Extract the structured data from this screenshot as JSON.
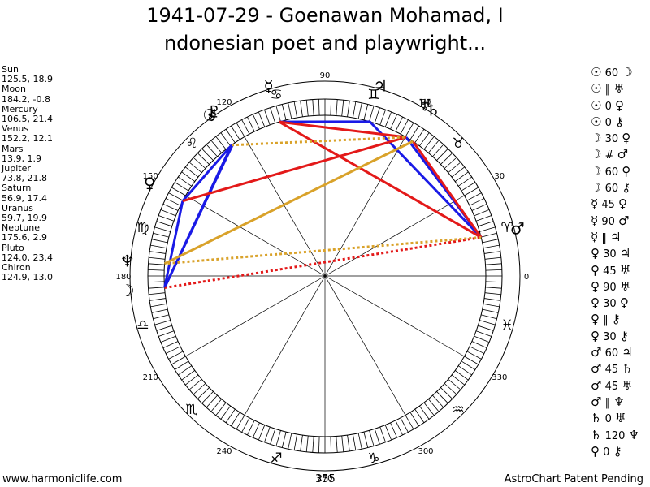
{
  "title": {
    "line1": "1941-07-29 - Goenawan Mohamad, I",
    "line2": "ndonesian poet and playwright..."
  },
  "positions": [
    {
      "name": "Sun",
      "value": "125.5, 18.9"
    },
    {
      "name": "Moon",
      "value": "184.2, -0.8"
    },
    {
      "name": "Mercury",
      "value": "106.5, 21.4"
    },
    {
      "name": "Venus",
      "value": "152.2, 12.1"
    },
    {
      "name": "Mars",
      "value": "13.9, 1.9"
    },
    {
      "name": "Jupiter",
      "value": "73.8, 21.8"
    },
    {
      "name": "Saturn",
      "value": "56.9, 17.4"
    },
    {
      "name": "Uranus",
      "value": "59.7, 19.9"
    },
    {
      "name": "Neptune",
      "value": "175.6, 2.9"
    },
    {
      "name": "Pluto",
      "value": "124.0, 23.4"
    },
    {
      "name": "Chiron",
      "value": "124.9, 13.0"
    }
  ],
  "aspects": [
    {
      "p1": "☉",
      "asp": "60",
      "p2": "☽"
    },
    {
      "p1": "☉",
      "asp": "‖",
      "p2": "♅"
    },
    {
      "p1": "☉",
      "asp": "0",
      "p2": "♀"
    },
    {
      "p1": "☉",
      "asp": "0",
      "p2": "⚷"
    },
    {
      "p1": "☽",
      "asp": "30",
      "p2": "♀"
    },
    {
      "p1": "☽",
      "asp": "#",
      "p2": "♂"
    },
    {
      "p1": "☽",
      "asp": "60",
      "p2": "♀"
    },
    {
      "p1": "☽",
      "asp": "60",
      "p2": "⚷"
    },
    {
      "p1": "☿",
      "asp": "45",
      "p2": "♀"
    },
    {
      "p1": "☿",
      "asp": "90",
      "p2": "♂"
    },
    {
      "p1": "☿",
      "asp": "‖",
      "p2": "♃"
    },
    {
      "p1": "♀",
      "asp": "30",
      "p2": "♃"
    },
    {
      "p1": "♀",
      "asp": "45",
      "p2": "♅"
    },
    {
      "p1": "♀",
      "asp": "90",
      "p2": "♅"
    },
    {
      "p1": "♀",
      "asp": "30",
      "p2": "♀"
    },
    {
      "p1": "♀",
      "asp": "‖",
      "p2": "⚷"
    },
    {
      "p1": "♀",
      "asp": "30",
      "p2": "⚷"
    },
    {
      "p1": "♂",
      "asp": "60",
      "p2": "♃"
    },
    {
      "p1": "♂",
      "asp": "45",
      "p2": "♄"
    },
    {
      "p1": "♂",
      "asp": "45",
      "p2": "♅"
    },
    {
      "p1": "♂",
      "asp": "‖",
      "p2": "♆"
    },
    {
      "p1": "♄",
      "asp": "0",
      "p2": "♅"
    },
    {
      "p1": "♄",
      "asp": "120",
      "p2": "♆"
    },
    {
      "p1": "♀",
      "asp": "0",
      "p2": "⚷"
    }
  ],
  "footer": {
    "site": "www.harmoniclife.com",
    "center_value": "355",
    "patent": "AstroChart Patent Pending"
  },
  "colors": {
    "red": "#e31919",
    "blue": "#1a1ae6",
    "gold": "#d9a22a",
    "ink": "#000000"
  },
  "chart_data": {
    "type": "radial",
    "degree_labels": [
      "0",
      "30",
      "60",
      "90",
      "120",
      "150",
      "180",
      "210",
      "240",
      "270",
      "300",
      "330"
    ],
    "signs": [
      "♈",
      "♉",
      "♊",
      "♋",
      "♌",
      "♍",
      "♎",
      "♏",
      "♐",
      "♑",
      "♒",
      "♓"
    ],
    "planets": [
      {
        "glyph": "☉",
        "lon": 125.5
      },
      {
        "glyph": "☽",
        "lon": 184.2
      },
      {
        "glyph": "☿",
        "lon": 106.5
      },
      {
        "glyph": "♀",
        "lon": 152.2
      },
      {
        "glyph": "♂",
        "lon": 13.9
      },
      {
        "glyph": "♃",
        "lon": 73.8
      },
      {
        "glyph": "♄",
        "lon": 56.9
      },
      {
        "glyph": "♅",
        "lon": 59.7
      },
      {
        "glyph": "♆",
        "lon": 175.6
      },
      {
        "glyph": "♇",
        "lon": 124.0
      },
      {
        "glyph": "⚷",
        "lon": 124.9
      }
    ],
    "aspect_lines": [
      {
        "a": 0,
        "b": 1,
        "color": "blue",
        "style": "solid"
      },
      {
        "a": 0,
        "b": 3,
        "color": "blue",
        "style": "solid"
      },
      {
        "a": 0,
        "b": 10,
        "color": "blue",
        "style": "solid"
      },
      {
        "a": 1,
        "b": 3,
        "color": "blue",
        "style": "solid"
      },
      {
        "a": 1,
        "b": 10,
        "color": "blue",
        "style": "solid"
      },
      {
        "a": 2,
        "b": 5,
        "color": "blue",
        "style": "solid"
      },
      {
        "a": 4,
        "b": 5,
        "color": "blue",
        "style": "solid"
      },
      {
        "a": 4,
        "b": 7,
        "color": "blue",
        "style": "solid"
      },
      {
        "a": 2,
        "b": 4,
        "color": "red",
        "style": "solid"
      },
      {
        "a": 2,
        "b": 7,
        "color": "red",
        "style": "solid"
      },
      {
        "a": 3,
        "b": 7,
        "color": "red",
        "style": "solid"
      },
      {
        "a": 4,
        "b": 6,
        "color": "red",
        "style": "solid"
      },
      {
        "a": 1,
        "b": 4,
        "color": "red",
        "style": "dotted"
      },
      {
        "a": 6,
        "b": 8,
        "color": "gold",
        "style": "solid"
      },
      {
        "a": 4,
        "b": 8,
        "color": "gold",
        "style": "dotted"
      },
      {
        "a": 0,
        "b": 7,
        "color": "gold",
        "style": "dotted"
      }
    ]
  }
}
